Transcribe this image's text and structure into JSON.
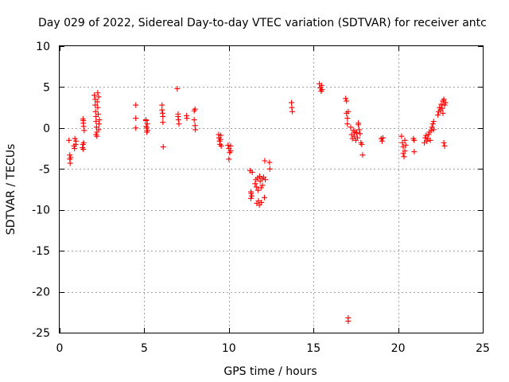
{
  "chart_data": {
    "type": "scatter",
    "title": "Day 029 of 2022, Sidereal Day-to-day VTEC variation (SDTVAR) for receiver antc",
    "xlabel": "GPS time / hours",
    "ylabel": "SDTVAR / TECUs",
    "xlim": [
      0,
      25
    ],
    "ylim": [
      -25,
      10
    ],
    "xticks": [
      0,
      5,
      10,
      15,
      20,
      25
    ],
    "yticks": [
      10,
      5,
      0,
      -5,
      -10,
      -15,
      -20,
      -25
    ],
    "grid": true,
    "marker": "plus",
    "color": "#ff0000",
    "series": [
      {
        "name": "SDTVAR",
        "points": [
          [
            0.55,
            -1.5
          ],
          [
            0.6,
            -3.3
          ],
          [
            0.6,
            -3.8
          ],
          [
            0.62,
            -4.3
          ],
          [
            0.65,
            -3.6
          ],
          [
            0.85,
            -2.2
          ],
          [
            0.88,
            -2.5
          ],
          [
            0.9,
            -1.3
          ],
          [
            0.95,
            -2.0
          ],
          [
            0.97,
            -1.6
          ],
          [
            1.35,
            -2.4
          ],
          [
            1.38,
            -2.0
          ],
          [
            1.4,
            -2.6
          ],
          [
            1.42,
            -1.8
          ],
          [
            1.38,
            1.1
          ],
          [
            1.4,
            0.6
          ],
          [
            1.42,
            0.2
          ],
          [
            1.45,
            -0.3
          ],
          [
            1.4,
            0.9
          ],
          [
            2.05,
            4.0
          ],
          [
            2.1,
            3.5
          ],
          [
            2.1,
            2.8
          ],
          [
            2.12,
            2.0
          ],
          [
            2.15,
            1.4
          ],
          [
            2.15,
            0.8
          ],
          [
            2.18,
            0.1
          ],
          [
            2.2,
            -0.5
          ],
          [
            2.2,
            -1.0
          ],
          [
            2.22,
            3.2
          ],
          [
            2.25,
            4.3
          ],
          [
            2.25,
            2.5
          ],
          [
            2.28,
            1.7
          ],
          [
            2.3,
            3.8
          ],
          [
            2.3,
            -0.2
          ],
          [
            2.32,
            0.5
          ],
          [
            2.35,
            1.0
          ],
          [
            2.15,
            -0.8
          ],
          [
            4.5,
            2.8
          ],
          [
            4.5,
            1.2
          ],
          [
            4.5,
            0.0
          ],
          [
            5.1,
            0.9
          ],
          [
            5.12,
            0.2
          ],
          [
            5.15,
            -0.5
          ],
          [
            5.18,
            0.5
          ],
          [
            5.2,
            -0.3
          ],
          [
            5.1,
            1.0
          ],
          [
            5.15,
            0.0
          ],
          [
            6.05,
            2.8
          ],
          [
            6.05,
            2.2
          ],
          [
            6.1,
            1.4
          ],
          [
            6.1,
            0.7
          ],
          [
            6.12,
            -2.3
          ],
          [
            6.08,
            1.8
          ],
          [
            6.95,
            4.8
          ],
          [
            7.0,
            1.7
          ],
          [
            7.02,
            1.0
          ],
          [
            7.05,
            0.5
          ],
          [
            7.0,
            1.4
          ],
          [
            7.5,
            1.5
          ],
          [
            7.52,
            1.2
          ],
          [
            7.95,
            2.1
          ],
          [
            7.95,
            1.0
          ],
          [
            8.0,
            0.3
          ],
          [
            8.02,
            -0.2
          ],
          [
            8.0,
            2.3
          ],
          [
            9.4,
            -0.8
          ],
          [
            9.42,
            -1.2
          ],
          [
            9.45,
            -1.6
          ],
          [
            9.48,
            -2.0
          ],
          [
            9.5,
            -1.4
          ],
          [
            9.52,
            -0.9
          ],
          [
            9.55,
            -2.2
          ],
          [
            9.95,
            -2.1
          ],
          [
            10.0,
            -2.5
          ],
          [
            10.05,
            -3.0
          ],
          [
            10.0,
            -3.8
          ],
          [
            10.1,
            -2.8
          ],
          [
            10.1,
            -2.2
          ],
          [
            11.25,
            -5.2
          ],
          [
            11.3,
            -7.8
          ],
          [
            11.35,
            -8.3
          ],
          [
            11.3,
            -8.6
          ],
          [
            11.38,
            -5.4
          ],
          [
            11.32,
            -8.0
          ],
          [
            11.55,
            -6.8
          ],
          [
            11.6,
            -6.3
          ],
          [
            11.62,
            -7.2
          ],
          [
            11.65,
            -9.2
          ],
          [
            11.7,
            -6.1
          ],
          [
            11.72,
            -7.6
          ],
          [
            11.75,
            -8.9
          ],
          [
            11.8,
            -9.4
          ],
          [
            11.82,
            -5.9
          ],
          [
            11.85,
            -6.5
          ],
          [
            11.9,
            -7.3
          ],
          [
            11.92,
            -9.1
          ],
          [
            11.95,
            -6.2
          ],
          [
            11.98,
            -7.0
          ],
          [
            12.05,
            -6.0
          ],
          [
            12.1,
            -8.5
          ],
          [
            12.12,
            -4.0
          ],
          [
            12.15,
            -6.3
          ],
          [
            12.4,
            -4.2
          ],
          [
            12.42,
            -5.0
          ],
          [
            13.7,
            3.1
          ],
          [
            13.72,
            2.5
          ],
          [
            13.75,
            2.0
          ],
          [
            15.35,
            5.4
          ],
          [
            15.4,
            4.9
          ],
          [
            15.45,
            4.5
          ],
          [
            15.48,
            5.2
          ],
          [
            15.5,
            4.7
          ],
          [
            16.9,
            3.6
          ],
          [
            16.95,
            3.3
          ],
          [
            16.95,
            1.8
          ],
          [
            17.0,
            1.2
          ],
          [
            17.0,
            0.5
          ],
          [
            17.05,
            2.0
          ],
          [
            17.05,
            -23.2
          ],
          [
            17.05,
            -23.6
          ],
          [
            17.2,
            0.1
          ],
          [
            17.25,
            -0.8
          ],
          [
            17.3,
            -1.3
          ],
          [
            17.35,
            -0.3
          ],
          [
            17.4,
            -1.0
          ],
          [
            17.45,
            -0.5
          ],
          [
            17.5,
            -1.5
          ],
          [
            17.55,
            -0.6
          ],
          [
            17.6,
            -1.2
          ],
          [
            17.65,
            0.4
          ],
          [
            17.7,
            -0.2
          ],
          [
            17.75,
            -0.7
          ],
          [
            17.8,
            -1.8
          ],
          [
            17.85,
            -2.0
          ],
          [
            17.9,
            -3.3
          ],
          [
            17.65,
            0.6
          ],
          [
            19.0,
            -1.3
          ],
          [
            19.05,
            -1.6
          ],
          [
            19.1,
            -1.2
          ],
          [
            20.2,
            -1.0
          ],
          [
            20.25,
            -1.8
          ],
          [
            20.3,
            -2.3
          ],
          [
            20.3,
            -3.1
          ],
          [
            20.35,
            -3.5
          ],
          [
            20.4,
            -2.8
          ],
          [
            20.4,
            -1.5
          ],
          [
            20.45,
            -2.1
          ],
          [
            20.9,
            -1.3
          ],
          [
            20.95,
            -1.5
          ],
          [
            20.95,
            -2.9
          ],
          [
            21.55,
            -1.8
          ],
          [
            21.6,
            -1.2
          ],
          [
            21.65,
            -0.9
          ],
          [
            21.7,
            -1.6
          ],
          [
            21.75,
            -1.3
          ],
          [
            21.8,
            -0.8
          ],
          [
            21.85,
            -0.5
          ],
          [
            21.9,
            -1.5
          ],
          [
            21.95,
            -0.3
          ],
          [
            22.0,
            0.1
          ],
          [
            22.05,
            0.5
          ],
          [
            22.1,
            -0.2
          ],
          [
            22.1,
            0.8
          ],
          [
            22.35,
            1.6
          ],
          [
            22.4,
            2.0
          ],
          [
            22.45,
            2.5
          ],
          [
            22.5,
            2.2
          ],
          [
            22.55,
            2.9
          ],
          [
            22.6,
            2.4
          ],
          [
            22.65,
            3.3
          ],
          [
            22.7,
            3.5
          ],
          [
            22.75,
            2.8
          ],
          [
            22.8,
            3.1
          ],
          [
            22.7,
            -1.8
          ],
          [
            22.75,
            -2.2
          ],
          [
            22.65,
            1.8
          ]
        ]
      }
    ]
  }
}
